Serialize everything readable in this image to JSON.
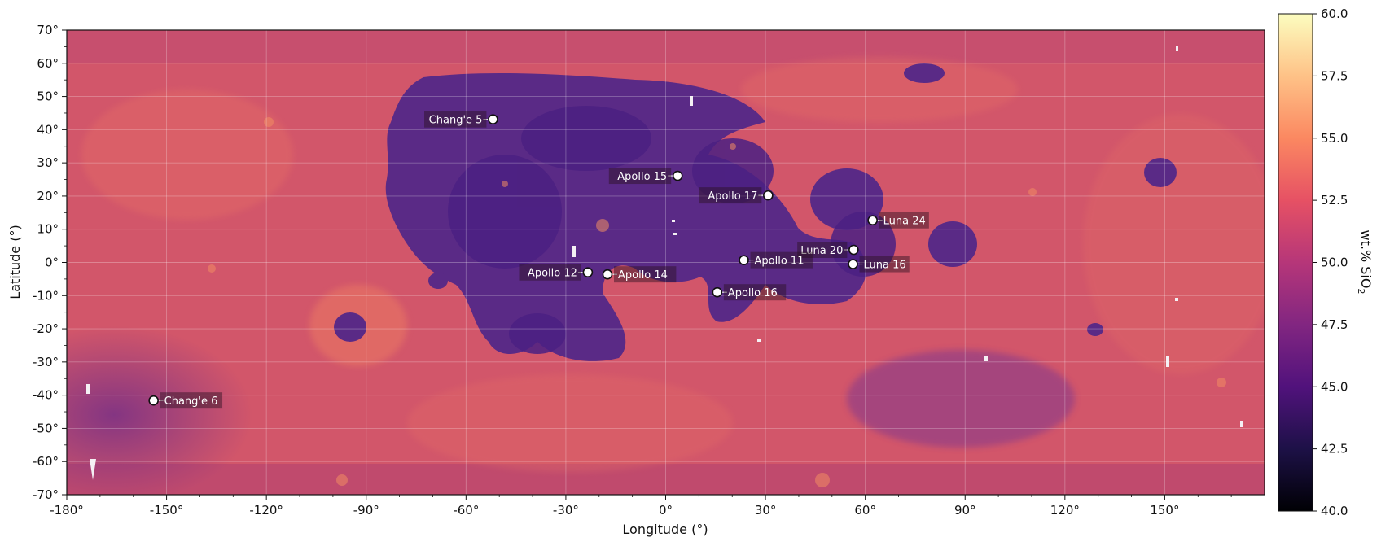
{
  "map": {
    "type": "lunar-equirectangular",
    "xlabel": "Longitude (°)",
    "ylabel": "Latitude (°)",
    "lon_range": [
      -180,
      180
    ],
    "lat_range": [
      -70,
      70
    ],
    "x_ticks": [
      "-180°",
      "-150°",
      "-120°",
      "-90°",
      "-60°",
      "-30°",
      "0°",
      "30°",
      "60°",
      "90°",
      "120°",
      "150°"
    ],
    "x_tick_values": [
      -180,
      -150,
      -120,
      -90,
      -60,
      -30,
      0,
      30,
      60,
      90,
      120,
      150
    ],
    "y_ticks": [
      "70°",
      "60°",
      "50°",
      "40°",
      "30°",
      "20°",
      "10°",
      "0°",
      "-10°",
      "-20°",
      "-30°",
      "-40°",
      "-50°",
      "-60°",
      "-70°"
    ],
    "y_tick_values": [
      70,
      60,
      50,
      40,
      30,
      20,
      10,
      0,
      -10,
      -20,
      -30,
      -40,
      -50,
      -60,
      -70
    ],
    "grid": true,
    "sites": [
      {
        "name": "Chang'e 5",
        "lon": -51.9,
        "lat": 43.1,
        "label_side": "left"
      },
      {
        "name": "Apollo 15",
        "lon": 3.6,
        "lat": 26.1,
        "label_side": "left"
      },
      {
        "name": "Apollo 17",
        "lon": 30.8,
        "lat": 20.2,
        "label_side": "left"
      },
      {
        "name": "Luna 24",
        "lon": 62.2,
        "lat": 12.7,
        "label_side": "right"
      },
      {
        "name": "Luna 20",
        "lon": 56.5,
        "lat": 3.8,
        "label_side": "left"
      },
      {
        "name": "Apollo 11",
        "lon": 23.5,
        "lat": 0.7,
        "label_side": "right"
      },
      {
        "name": "Luna 16",
        "lon": 56.3,
        "lat": -0.5,
        "label_side": "right"
      },
      {
        "name": "Apollo 12",
        "lon": -23.4,
        "lat": -3.0,
        "label_side": "left"
      },
      {
        "name": "Apollo 14",
        "lon": -17.5,
        "lat": -3.6,
        "label_side": "right"
      },
      {
        "name": "Apollo 16",
        "lon": 15.5,
        "lat": -9.0,
        "label_side": "right"
      },
      {
        "name": "Chang'e 6",
        "lon": -153.9,
        "lat": -41.6,
        "label_side": "right"
      }
    ]
  },
  "colorbar": {
    "label": "wt.% SiO",
    "label_sub": "2",
    "range": [
      40.0,
      60.0
    ],
    "ticks": [
      "60.0",
      "57.5",
      "55.0",
      "52.5",
      "50.0",
      "47.5",
      "45.0",
      "42.5",
      "40.0"
    ],
    "tick_values": [
      60.0,
      57.5,
      55.0,
      52.5,
      50.0,
      47.5,
      45.0,
      42.5,
      40.0
    ],
    "colormap": "magma",
    "colors": [
      "#000004",
      "#1d1147",
      "#51127c",
      "#822681",
      "#b63679",
      "#e65164",
      "#fb8861",
      "#fec287",
      "#fcfdbf"
    ]
  },
  "terrain_colors": {
    "highland": "#d2566a",
    "mare": "#5a2a86",
    "mare_dark": "#4b2082",
    "bright": "#ea7562"
  }
}
